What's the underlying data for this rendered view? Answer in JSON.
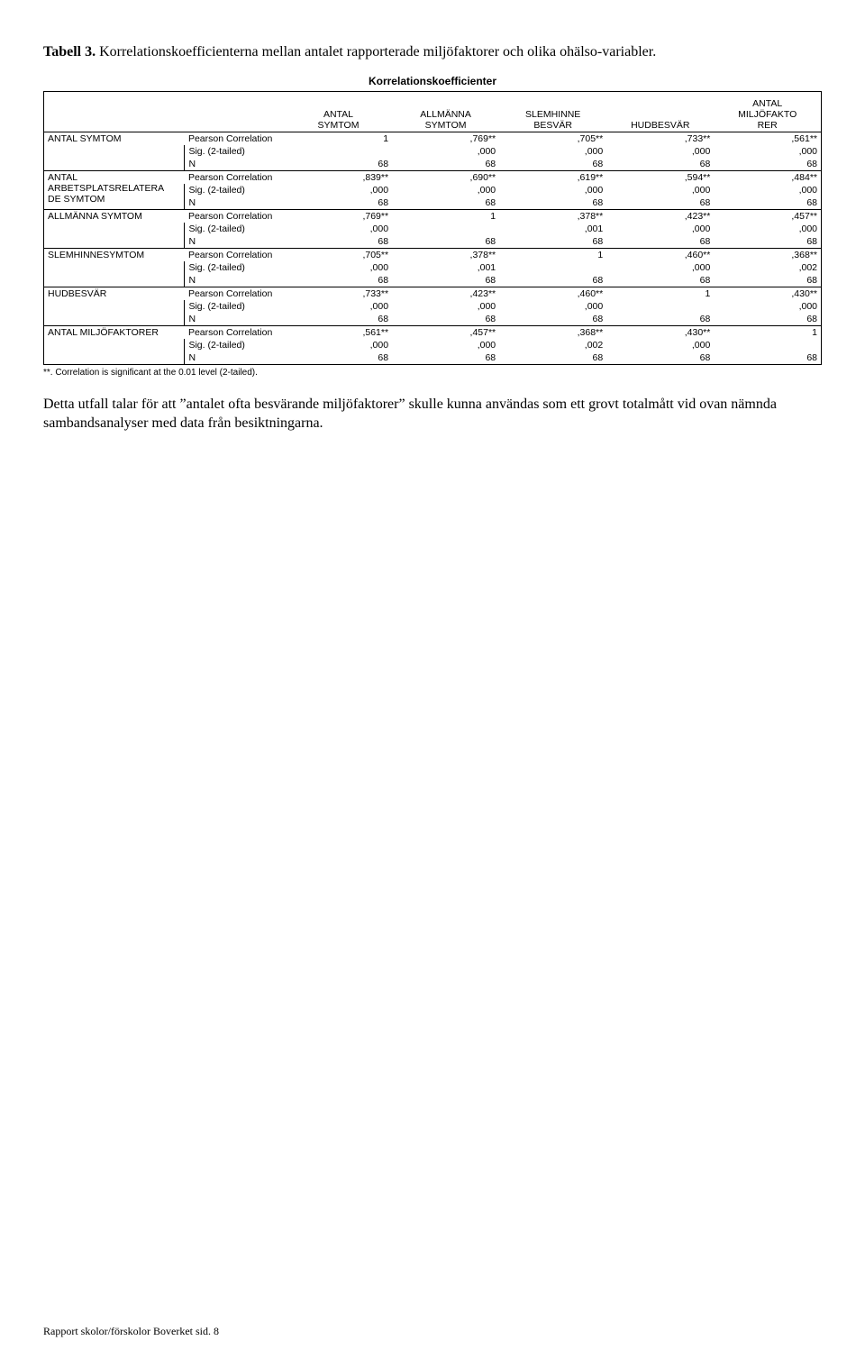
{
  "caption_bold": "Tabell 3.",
  "caption_rest": " Korrelationskoefficienterna mellan antalet rapporterade miljöfaktorer och olika ohälso-variabler.",
  "table_title": "Korrelationskoefficienter",
  "columns": [
    "ANTAL\nSYMTOM",
    "ALLMÄNNA\nSYMTOM",
    "SLEMHINNE\nBESVÄR",
    "HUDBESVÄR",
    "ANTAL\nMILJÖFAKTO\nRER"
  ],
  "stat_labels": {
    "pc": "Pearson Correlation",
    "sig": "Sig. (2-tailed)",
    "n": "N"
  },
  "groups": [
    {
      "label": "ANTAL SYMTOM",
      "pc": [
        "1",
        ",769**",
        ",705**",
        ",733**",
        ",561**"
      ],
      "sig": [
        "",
        ",000",
        ",000",
        ",000",
        ",000"
      ],
      "n": [
        "68",
        "68",
        "68",
        "68",
        "68"
      ]
    },
    {
      "label": "ANTAL\nARBETSPLATSRELATERA\nDE SYMTOM",
      "pc": [
        ",839**",
        ",690**",
        ",619**",
        ",594**",
        ",484**"
      ],
      "sig": [
        ",000",
        ",000",
        ",000",
        ",000",
        ",000"
      ],
      "n": [
        "68",
        "68",
        "68",
        "68",
        "68"
      ]
    },
    {
      "label": "ALLMÄNNA SYMTOM",
      "pc": [
        ",769**",
        "1",
        ",378**",
        ",423**",
        ",457**"
      ],
      "sig": [
        ",000",
        "",
        ",001",
        ",000",
        ",000"
      ],
      "n": [
        "68",
        "68",
        "68",
        "68",
        "68"
      ]
    },
    {
      "label": "SLEMHINNESYMTOM",
      "pc": [
        ",705**",
        ",378**",
        "1",
        ",460**",
        ",368**"
      ],
      "sig": [
        ",000",
        ",001",
        "",
        ",000",
        ",002"
      ],
      "n": [
        "68",
        "68",
        "68",
        "68",
        "68"
      ]
    },
    {
      "label": "HUDBESVÄR",
      "pc": [
        ",733**",
        ",423**",
        ",460**",
        "1",
        ",430**"
      ],
      "sig": [
        ",000",
        ",000",
        ",000",
        "",
        ",000"
      ],
      "n": [
        "68",
        "68",
        "68",
        "68",
        "68"
      ]
    },
    {
      "label": "ANTAL MILJÖFAKTORER",
      "pc": [
        ",561**",
        ",457**",
        ",368**",
        ",430**",
        "1"
      ],
      "sig": [
        ",000",
        ",000",
        ",002",
        ",000",
        ""
      ],
      "n": [
        "68",
        "68",
        "68",
        "68",
        "68"
      ]
    }
  ],
  "footnote_marker": "**.",
  "footnote_text": "Correlation is significant at the 0.01 level (2-tailed).",
  "body_text": "Detta utfall talar för att \"antalet ofta besvärande miljöfaktorer\" skulle kunna användas som ett grovt totalmått vid ovan nämnda sambandsanalyser med data från besiktningarna.",
  "footer": "Rapport skolor/förskolor Boverket sid. 8"
}
